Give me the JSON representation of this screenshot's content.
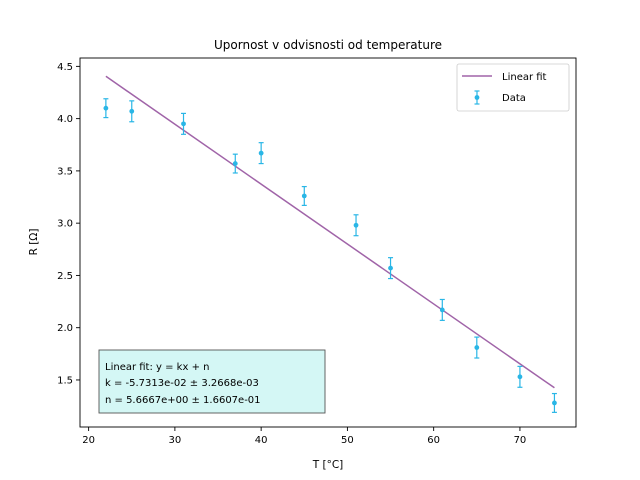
{
  "chart_data": {
    "type": "scatter",
    "title": "Upornost v odvisnosti od temperature",
    "xlabel": "T [°C]",
    "ylabel": "R [Ω]",
    "xlim": [
      19,
      76.5
    ],
    "ylim": [
      1.05,
      4.58
    ],
    "xticks": [
      20,
      30,
      40,
      50,
      60,
      70
    ],
    "yticks": [
      1.5,
      2.0,
      2.5,
      3.0,
      3.5,
      4.0,
      4.5
    ],
    "xtick_labels": [
      "20",
      "30",
      "40",
      "50",
      "60",
      "70"
    ],
    "ytick_labels": [
      "1.5",
      "2.0",
      "2.5",
      "3.0",
      "3.5",
      "4.0",
      "4.5"
    ],
    "grid": false,
    "legend_position": "top-right",
    "series": [
      {
        "name": "Data",
        "kind": "errorbar",
        "color": "#29b6e6",
        "x": [
          22,
          25,
          31,
          37,
          40,
          45,
          51,
          55,
          61,
          65,
          70,
          74
        ],
        "y": [
          4.1,
          4.07,
          3.95,
          3.57,
          3.67,
          3.26,
          2.98,
          2.57,
          2.17,
          1.81,
          1.53,
          1.28
        ],
        "yerr": [
          0.09,
          0.1,
          0.1,
          0.09,
          0.1,
          0.09,
          0.1,
          0.1,
          0.1,
          0.1,
          0.1,
          0.09
        ]
      },
      {
        "name": "Linear fit",
        "kind": "line",
        "color": "#a064a8",
        "x": [
          22,
          74
        ],
        "y": [
          4.405,
          1.425
        ]
      }
    ],
    "annotation": {
      "line1": "Linear fit: y = kx + n",
      "line2": "k = -5.7313e-02 ± 3.2668e-03",
      "line3": "n = 5.6667e+00 ± 1.6607e-01",
      "background": "#d4f7f5"
    }
  }
}
